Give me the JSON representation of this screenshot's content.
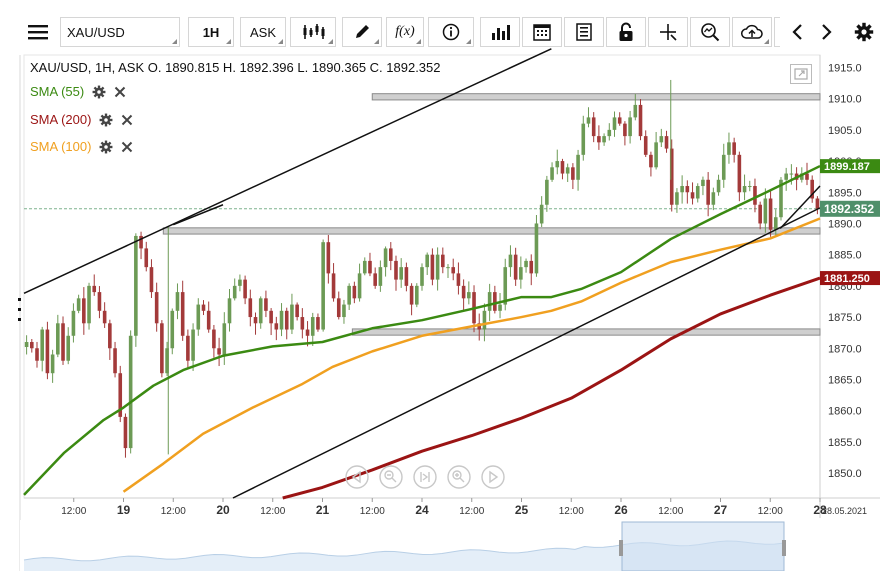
{
  "toolbar": {
    "symbol": "XAU/USD",
    "timeframe": "1H",
    "price_type": "ASK",
    "fx_label": "f(x)"
  },
  "legend": {
    "ohlc": "XAU/USD, 1H, ASK   O. 1890.815 H. 1892.396 L. 1890.365 C. 1892.352",
    "sma": [
      {
        "label": "SMA (55)",
        "color": "#3b8a12"
      },
      {
        "label": "SMA (200)",
        "color": "#9b1414"
      },
      {
        "label": "SMA (100)",
        "color": "#f0a020"
      }
    ]
  },
  "chart_data": {
    "type": "candlestick",
    "symbol": "XAU/USD",
    "ylim": [
      1846,
      1917
    ],
    "y_ticks": [
      1850,
      1855,
      1860,
      1865,
      1870,
      1875,
      1880,
      1885,
      1890,
      1895,
      1900,
      1905,
      1910,
      1915
    ],
    "x_ticks": [
      {
        "label": "12:00",
        "x": 18.5
      },
      {
        "label": "19",
        "x": 19
      },
      {
        "label": "12:00",
        "x": 19.5
      },
      {
        "label": "20",
        "x": 20
      },
      {
        "label": "12:00",
        "x": 20.5
      },
      {
        "label": "21",
        "x": 21
      },
      {
        "label": "12:00",
        "x": 21.5
      },
      {
        "label": "24",
        "x": 22
      },
      {
        "label": "12:00",
        "x": 22.5
      },
      {
        "label": "25",
        "x": 23
      },
      {
        "label": "12:00",
        "x": 23.5
      },
      {
        "label": "26",
        "x": 24
      },
      {
        "label": "12:00",
        "x": 24.5
      },
      {
        "label": "27",
        "x": 25
      },
      {
        "label": "12:00",
        "x": 25.5
      },
      {
        "label": "28",
        "x": 26
      }
    ],
    "x_end_label": "28.05.2021",
    "price_labels": [
      {
        "value": 1899.187,
        "text": "1899.187",
        "color": "#3b8a12"
      },
      {
        "value": 1892.352,
        "text": "1892.352",
        "color": "#4f8f6a"
      },
      {
        "value": 1881.25,
        "text": "1881.250",
        "color": "#9b1414"
      }
    ],
    "current_price": 1892.352,
    "closes": [
      1871,
      1870,
      1868,
      1873,
      1866,
      1869,
      1874,
      1868,
      1872,
      1876,
      1878,
      1874,
      1880,
      1879,
      1876,
      1874,
      1870,
      1866,
      1859,
      1854,
      1872,
      1888,
      1886,
      1883,
      1879,
      1874,
      1866,
      1870,
      1876,
      1879,
      1872,
      1868,
      1873,
      1877,
      1876,
      1873,
      1870,
      1869,
      1874,
      1878,
      1880,
      1881,
      1878,
      1875,
      1874,
      1878,
      1876,
      1874,
      1873,
      1876,
      1873,
      1877,
      1875,
      1873,
      1872,
      1875,
      1873,
      1887,
      1882,
      1878,
      1875,
      1877,
      1880,
      1878,
      1882,
      1884,
      1882,
      1880,
      1883,
      1886,
      1884,
      1881,
      1883,
      1880,
      1877,
      1880,
      1883,
      1885,
      1881,
      1885,
      1883,
      1883,
      1882,
      1880,
      1878,
      1879,
      1874,
      1873,
      1876,
      1879,
      1876,
      1877,
      1883,
      1885,
      1881,
      1883,
      1884,
      1882,
      1890,
      1893,
      1897,
      1899,
      1900,
      1898,
      1899,
      1897,
      1901,
      1906,
      1907,
      1904,
      1903,
      1904,
      1905,
      1907,
      1906,
      1904,
      1907,
      1909,
      1904,
      1901,
      1899,
      1903,
      1904,
      1902,
      1893,
      1895,
      1896,
      1895,
      1894,
      1896,
      1897,
      1893,
      1895,
      1897,
      1901,
      1903,
      1901,
      1895,
      1896,
      1896,
      1893,
      1890,
      1894,
      1889,
      1891,
      1897,
      1898,
      1898,
      1897,
      1898,
      1897,
      1894,
      1892.352
    ],
    "sma55": [
      [
        18.0,
        1846.5
      ],
      [
        18.4,
        1853.2
      ],
      [
        18.8,
        1858.5
      ],
      [
        19.0,
        1860.5
      ],
      [
        19.3,
        1864.0
      ],
      [
        19.6,
        1866.5
      ],
      [
        20.0,
        1868.8
      ],
      [
        20.5,
        1870.3
      ],
      [
        21.0,
        1871.0
      ],
      [
        21.5,
        1873.2
      ],
      [
        22.0,
        1874.5
      ],
      [
        22.5,
        1876.3
      ],
      [
        23.0,
        1878.2
      ],
      [
        23.3,
        1878.2
      ],
      [
        23.6,
        1879.5
      ],
      [
        24.0,
        1882.2
      ],
      [
        24.5,
        1887.5
      ],
      [
        25.0,
        1891.5
      ],
      [
        25.5,
        1895.3
      ],
      [
        26.0,
        1899.2
      ]
    ],
    "sma100": [
      [
        19.0,
        1847.0
      ],
      [
        19.4,
        1851.5
      ],
      [
        19.8,
        1856.3
      ],
      [
        20.3,
        1860.5
      ],
      [
        20.8,
        1864.3
      ],
      [
        21.1,
        1867.0
      ],
      [
        21.5,
        1869.5
      ],
      [
        22.0,
        1872.0
      ],
      [
        22.5,
        1873.5
      ],
      [
        23.0,
        1875.0
      ],
      [
        23.3,
        1876.0
      ],
      [
        23.6,
        1877.5
      ],
      [
        24.0,
        1880.5
      ],
      [
        24.5,
        1883.8
      ],
      [
        25.0,
        1885.8
      ],
      [
        25.5,
        1887.6
      ],
      [
        26.0,
        1890.8
      ]
    ],
    "sma200": [
      [
        20.6,
        1846.0
      ],
      [
        21.0,
        1847.7
      ],
      [
        21.5,
        1850.5
      ],
      [
        22.0,
        1853.5
      ],
      [
        22.5,
        1856.0
      ],
      [
        23.0,
        1858.8
      ],
      [
        23.5,
        1862.0
      ],
      [
        24.0,
        1866.5
      ],
      [
        24.5,
        1871.5
      ],
      [
        25.0,
        1875.5
      ],
      [
        25.5,
        1878.5
      ],
      [
        26.0,
        1881.25
      ]
    ],
    "trendlines": [
      [
        [
          18.0,
          1878.8
        ],
        [
          23.3,
          1918.0
        ]
      ],
      [
        [
          20.1,
          1846.0
        ],
        [
          26.0,
          1892.5
        ]
      ],
      [
        [
          19.5,
          1889.8
        ],
        [
          20.0,
          1893.0
        ]
      ],
      [
        [
          25.6,
          1889.2
        ],
        [
          26.0,
          1896.0
        ]
      ]
    ],
    "zones": [
      [
        [
          21.5,
          1910.8
        ],
        [
          26.0,
          1909.8
        ]
      ],
      [
        [
          19.4,
          1889.3
        ],
        [
          26.0,
          1888.3
        ]
      ],
      [
        [
          21.3,
          1873.1
        ],
        [
          26.0,
          1872.1
        ]
      ]
    ]
  }
}
